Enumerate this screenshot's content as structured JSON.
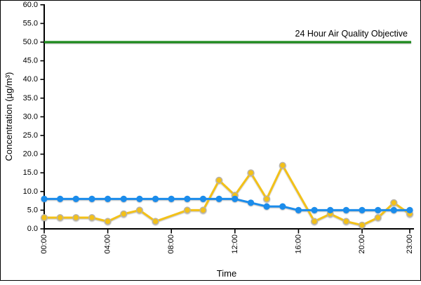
{
  "window": {
    "background": "#ffffff",
    "border_color": "#000000"
  },
  "chart_data": {
    "type": "line",
    "title": "",
    "xlabel": "Time",
    "ylabel": "Concentration (µg/m³)",
    "ylim": [
      0,
      60
    ],
    "ytick_step": 5,
    "grid": false,
    "legend": false,
    "hours": [
      "00:00",
      "01:00",
      "02:00",
      "03:00",
      "04:00",
      "05:00",
      "06:00",
      "07:00",
      "08:00",
      "09:00",
      "10:00",
      "11:00",
      "12:00",
      "13:00",
      "14:00",
      "15:00",
      "16:00",
      "17:00",
      "18:00",
      "19:00",
      "20:00",
      "21:00",
      "22:00",
      "23:00"
    ],
    "xticks": [
      {
        "index": 0,
        "label": "00:00"
      },
      {
        "index": 4,
        "label": "04:00"
      },
      {
        "index": 8,
        "label": "08:00"
      },
      {
        "index": 12,
        "label": "12:00"
      },
      {
        "index": 16,
        "label": "16:00"
      },
      {
        "index": 20,
        "label": "20:00"
      },
      {
        "index": 23,
        "label": "23:00"
      }
    ],
    "yticks": [
      {
        "value": 60,
        "label": "60.0"
      },
      {
        "value": 55,
        "label": "55.0"
      },
      {
        "value": 50,
        "label": "50.0"
      },
      {
        "value": 45,
        "label": "45.0"
      },
      {
        "value": 40,
        "label": "40.0"
      },
      {
        "value": 35,
        "label": "35.0"
      },
      {
        "value": 30,
        "label": "30.0"
      },
      {
        "value": 25,
        "label": "25.0"
      },
      {
        "value": 20,
        "label": "20.0"
      },
      {
        "value": 15,
        "label": "15.0"
      },
      {
        "value": 10,
        "label": "10.0"
      },
      {
        "value": 5,
        "label": "5.0"
      },
      {
        "value": 0,
        "label": "0.0"
      }
    ],
    "series": [
      {
        "name": "yellow-series",
        "color": "#f3c118",
        "marker": "circle",
        "marker_outline": "#b8b2a8",
        "values": [
          3,
          3,
          3,
          3,
          2,
          4,
          5,
          2,
          null,
          5,
          5,
          13,
          9,
          15,
          8,
          17,
          null,
          2,
          4,
          2,
          1,
          3,
          7,
          4
        ]
      },
      {
        "name": "blue-series",
        "color": "#1b8ceb",
        "marker": "circle",
        "marker_outline": null,
        "values": [
          8,
          8,
          8,
          8,
          8,
          8,
          8,
          8,
          8,
          8,
          8,
          8,
          8,
          7,
          6,
          6,
          5,
          5,
          5,
          5,
          5,
          5,
          5,
          5
        ]
      }
    ],
    "reference_line": {
      "value": 50.0,
      "label": "24 Hour Air Quality Objective",
      "color": "#1d8a1d"
    },
    "axis_color": "#000000"
  }
}
